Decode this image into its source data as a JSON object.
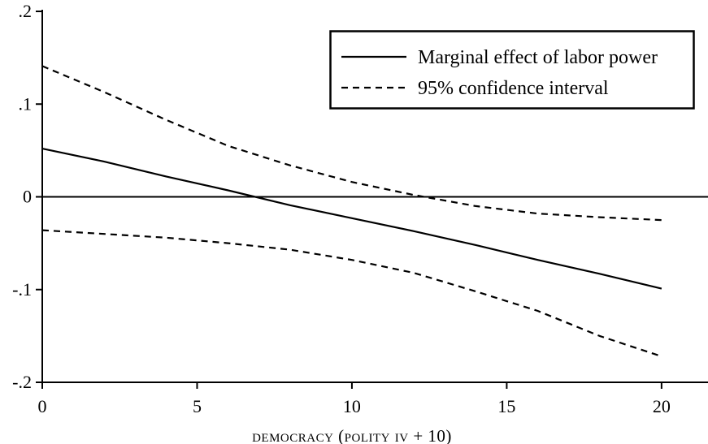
{
  "chart_data": {
    "type": "line",
    "title": "",
    "xlabel": "democracy (polity iv + 10)",
    "ylabel": "",
    "xlim": [
      0,
      21.5
    ],
    "ylim": [
      -0.2,
      0.2
    ],
    "x_ticks": [
      0,
      5,
      10,
      15,
      20
    ],
    "x_tick_labels": [
      "0",
      "5",
      "10",
      "15",
      "20"
    ],
    "y_ticks": [
      -0.2,
      -0.1,
      0,
      0.1,
      0.2
    ],
    "y_tick_labels": [
      "-.2",
      "-.1",
      "0",
      ".1",
      ".2"
    ],
    "reference_line_y": 0,
    "grid": false,
    "legend_position": "top-right",
    "series": [
      {
        "name": "Marginal effect of labor power",
        "style": "solid",
        "color": "#000000",
        "x": [
          0,
          2,
          4,
          6,
          8,
          10,
          12,
          14,
          16,
          18,
          20
        ],
        "y": [
          0.052,
          0.038,
          0.022,
          0.007,
          -0.009,
          -0.023,
          -0.037,
          -0.052,
          -0.068,
          -0.083,
          -0.099
        ]
      },
      {
        "name": "95% confidence interval",
        "style": "dashed",
        "color": "#000000",
        "x": [
          0,
          2,
          4,
          6,
          8,
          10,
          12,
          14,
          16,
          18,
          20
        ],
        "y": [
          0.141,
          0.113,
          0.083,
          0.055,
          0.034,
          0.016,
          0.002,
          -0.01,
          -0.018,
          -0.022,
          -0.025
        ]
      },
      {
        "name": "",
        "style": "dashed",
        "color": "#000000",
        "x": [
          0,
          2,
          4,
          6,
          8,
          10,
          12,
          14,
          16,
          18,
          20
        ],
        "y": [
          -0.036,
          -0.04,
          -0.044,
          -0.05,
          -0.057,
          -0.068,
          -0.082,
          -0.102,
          -0.123,
          -0.15,
          -0.172
        ]
      }
    ]
  }
}
